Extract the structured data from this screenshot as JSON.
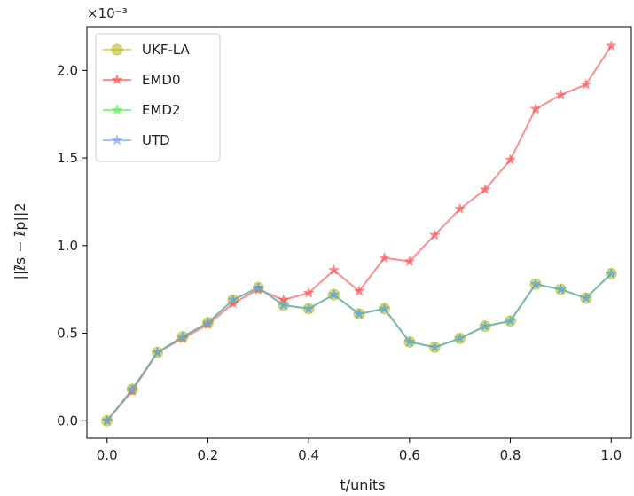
{
  "chart_data": {
    "type": "line",
    "title": "",
    "xlabel": "t/units",
    "ylabel": "||ℓ̄s − ℓ̄p||2",
    "y_scale_label": "×10⁻³",
    "xlim": [
      -0.04,
      1.04
    ],
    "ylim": [
      -0.1,
      2.25
    ],
    "x_ticks": [
      0.0,
      0.2,
      0.4,
      0.6,
      0.8,
      1.0
    ],
    "x_tick_labels": [
      "0.0",
      "0.2",
      "0.4",
      "0.6",
      "0.8",
      "1.0"
    ],
    "y_ticks": [
      0.0,
      0.5,
      1.0,
      1.5,
      2.0
    ],
    "y_tick_labels": [
      "0.0",
      "0.5",
      "1.0",
      "1.5",
      "2.0"
    ],
    "grid": false,
    "legend_position": "top-left",
    "x": [
      0.0,
      0.05,
      0.1,
      0.15,
      0.2,
      0.25,
      0.3,
      0.35,
      0.4,
      0.45,
      0.5,
      0.55,
      0.6,
      0.65,
      0.7,
      0.75,
      0.8,
      0.85,
      0.9,
      0.95,
      1.0
    ],
    "series": [
      {
        "name": "UKF-LA",
        "color": "#bcbd22",
        "marker": "circle",
        "values": [
          0.0,
          0.18,
          0.39,
          0.48,
          0.56,
          0.69,
          0.76,
          0.66,
          0.64,
          0.72,
          0.61,
          0.64,
          0.45,
          0.42,
          0.47,
          0.54,
          0.57,
          0.78,
          0.75,
          0.7,
          0.84
        ]
      },
      {
        "name": "EMD0",
        "color": "#ff4444",
        "marker": "star",
        "values": [
          0.0,
          0.17,
          0.39,
          0.47,
          0.55,
          0.67,
          0.75,
          0.69,
          0.73,
          0.86,
          0.74,
          0.93,
          0.91,
          1.06,
          1.21,
          1.32,
          1.49,
          1.78,
          1.86,
          1.92,
          2.14
        ]
      },
      {
        "name": "EMD2",
        "color": "#44ee44",
        "marker": "star",
        "values": [
          0.0,
          0.18,
          0.39,
          0.48,
          0.56,
          0.69,
          0.76,
          0.66,
          0.64,
          0.72,
          0.61,
          0.64,
          0.45,
          0.42,
          0.47,
          0.54,
          0.57,
          0.78,
          0.75,
          0.7,
          0.84
        ]
      },
      {
        "name": "UTD",
        "color": "#7799ee",
        "marker": "star",
        "values": [
          0.0,
          0.18,
          0.39,
          0.48,
          0.56,
          0.69,
          0.76,
          0.66,
          0.64,
          0.72,
          0.61,
          0.64,
          0.45,
          0.42,
          0.47,
          0.54,
          0.57,
          0.78,
          0.75,
          0.7,
          0.84
        ]
      }
    ]
  }
}
